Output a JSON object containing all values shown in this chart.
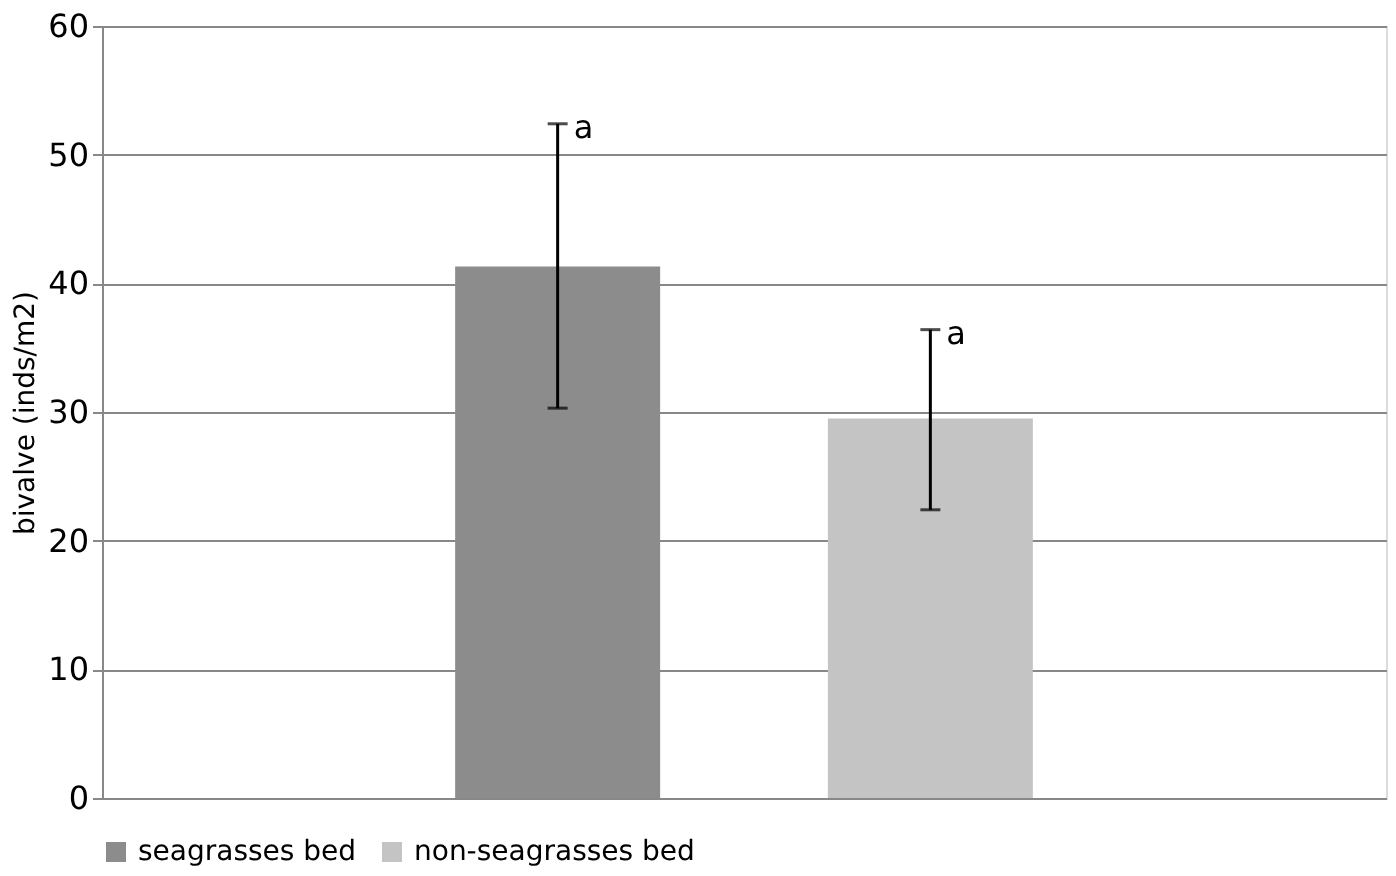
{
  "chart_data": {
    "type": "bar",
    "ylabel": "bivalve (inds/m2)",
    "categories": [
      null
    ],
    "series": [
      {
        "name": "seagrasses bed",
        "color": "#8c8c8c",
        "values": [
          41.3
        ],
        "errors": [
          [
            30.3,
            52.4
          ]
        ]
      },
      {
        "name": "non-seagrasses bed",
        "color": "#c4c4c4",
        "values": [
          29.5
        ],
        "errors": [
          [
            22.4,
            36.4
          ]
        ]
      }
    ],
    "annotations": [
      "a",
      "a"
    ],
    "ylim": [
      0,
      60
    ],
    "yticks": [
      0,
      10,
      20,
      30,
      40,
      50,
      60
    ],
    "grid": "y",
    "legend": "bottom"
  }
}
